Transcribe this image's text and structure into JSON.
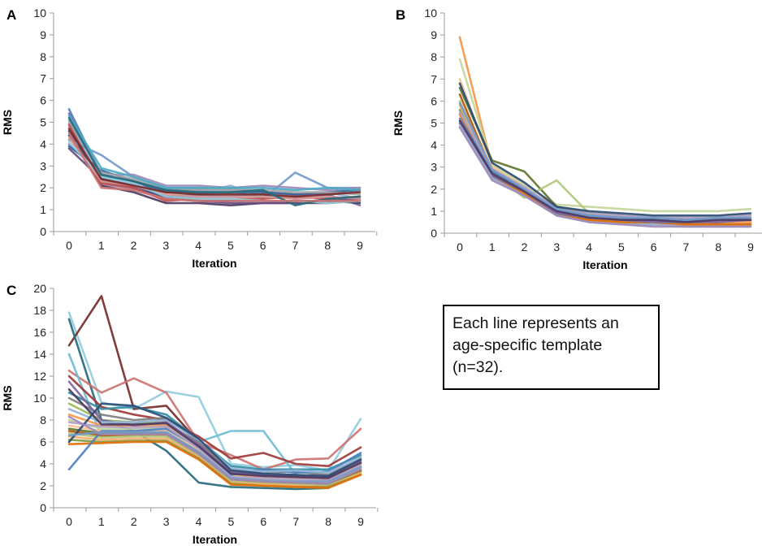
{
  "note": {
    "line1": "Each line represents an",
    "line2": "age-specific template",
    "line3": "(n=32)."
  },
  "palette": [
    "#4F81BD",
    "#C0504D",
    "#9BBB59",
    "#8064A2",
    "#4BACC6",
    "#F79646",
    "#95B3D7",
    "#D99694",
    "#C3D69B",
    "#B3A2C7",
    "#93CDDD",
    "#FAC090",
    "#2C4D75",
    "#772C2A",
    "#5F7530",
    "#4D3B62",
    "#276A7C",
    "#B65708",
    "#729ACA",
    "#CD7371",
    "#AFC97A",
    "#9F8AB8",
    "#6FBDD1",
    "#F9AB6B",
    "#3A679C",
    "#9E3A38",
    "#7E9C40",
    "#664F83",
    "#358DA4",
    "#E46C0A",
    "#A5A5A5",
    "#7F7F7F"
  ],
  "chart_data": [
    {
      "panel": "A",
      "type": "line",
      "xlabel": "Iteration",
      "ylabel": "RMS",
      "x": [
        0,
        1,
        2,
        3,
        4,
        5,
        6,
        7,
        8,
        9
      ],
      "ylim": [
        0,
        10
      ],
      "yticks": [
        0,
        1,
        2,
        3,
        4,
        5,
        6,
        7,
        8,
        9,
        10
      ],
      "series": [
        {
          "values": [
            5.6,
            2.6,
            2.2,
            1.6,
            1.7,
            1.6,
            1.7,
            1.5,
            1.6,
            1.4
          ]
        },
        {
          "values": [
            5.4,
            2.5,
            2.1,
            1.9,
            1.9,
            2.0,
            1.8,
            1.7,
            1.7,
            1.2
          ]
        },
        {
          "values": [
            5.0,
            2.4,
            2.3,
            1.8,
            1.8,
            2.1,
            1.6,
            1.6,
            1.8,
            1.5
          ]
        },
        {
          "values": [
            4.8,
            2.2,
            1.9,
            1.5,
            1.6,
            1.5,
            1.4,
            1.3,
            1.5,
            1.6
          ]
        },
        {
          "values": [
            4.6,
            2.3,
            2.0,
            1.6,
            1.5,
            1.4,
            1.4,
            1.4,
            1.4,
            1.3
          ]
        },
        {
          "values": [
            4.4,
            2.1,
            1.8,
            1.3,
            1.3,
            1.2,
            1.3,
            1.3,
            1.3,
            1.4
          ]
        },
        {
          "values": [
            4.2,
            3.5,
            2.5,
            2.0,
            2.0,
            1.9,
            1.5,
            2.7,
            2.0,
            2.0
          ]
        },
        {
          "values": [
            4.0,
            2.6,
            2.6,
            2.1,
            2.1,
            2.0,
            2.1,
            2.0,
            1.9,
            2.0
          ]
        },
        {
          "values": [
            3.9,
            2.8,
            2.3,
            1.8,
            1.8,
            1.8,
            1.8,
            1.7,
            1.8,
            1.9
          ]
        },
        {
          "values": [
            3.8,
            2.4,
            2.0,
            1.5,
            1.4,
            1.3,
            1.3,
            1.3,
            1.4,
            1.5
          ]
        },
        {
          "values": [
            5.1,
            2.7,
            2.4,
            1.9,
            1.9,
            1.9,
            1.9,
            1.8,
            1.8,
            1.7
          ]
        },
        {
          "values": [
            4.9,
            2.2,
            2.0,
            1.4,
            1.5,
            1.5,
            1.5,
            1.6,
            1.5,
            1.6
          ]
        },
        {
          "values": [
            5.3,
            2.9,
            2.5,
            2.0,
            2.0,
            2.0,
            2.0,
            1.9,
            2.0,
            1.9
          ]
        },
        {
          "values": [
            4.3,
            2.3,
            2.1,
            1.7,
            1.6,
            1.6,
            1.6,
            1.5,
            1.6,
            1.5
          ]
        },
        {
          "values": [
            4.1,
            2.5,
            2.2,
            1.6,
            1.5,
            1.5,
            1.4,
            1.4,
            1.3,
            1.4
          ]
        },
        {
          "values": [
            4.7,
            2.4,
            2.1,
            1.8,
            1.7,
            1.7,
            1.7,
            1.6,
            1.7,
            1.8
          ]
        },
        {
          "values": [
            5.2,
            2.6,
            2.3,
            1.9,
            1.8,
            1.8,
            1.9,
            1.2,
            1.5,
            1.6
          ]
        },
        {
          "values": [
            4.5,
            2.0,
            1.9,
            1.5,
            1.4,
            1.4,
            1.4,
            1.4,
            1.4,
            1.4
          ]
        }
      ]
    },
    {
      "panel": "B",
      "type": "line",
      "xlabel": "Iteration",
      "ylabel": "RMS",
      "x": [
        0,
        1,
        2,
        3,
        4,
        5,
        6,
        7,
        8,
        9
      ],
      "ylim": [
        0,
        10
      ],
      "yticks": [
        0,
        1,
        2,
        3,
        4,
        5,
        6,
        7,
        8,
        9,
        10
      ],
      "series": [
        {
          "values": [
            8.9,
            3.0,
            2.0,
            1.2,
            0.8,
            0.7,
            0.6,
            0.6,
            0.6,
            0.6
          ]
        },
        {
          "values": [
            7.9,
            3.1,
            2.2,
            1.3,
            1.2,
            1.1,
            1.0,
            1.0,
            1.0,
            1.1
          ]
        },
        {
          "values": [
            7.0,
            3.0,
            2.1,
            1.1,
            0.9,
            0.8,
            0.7,
            0.7,
            0.7,
            0.8
          ]
        },
        {
          "values": [
            6.6,
            3.3,
            2.8,
            1.2,
            0.9,
            0.8,
            0.6,
            0.5,
            0.5,
            0.5
          ]
        },
        {
          "values": [
            6.3,
            2.8,
            1.9,
            1.0,
            0.8,
            0.7,
            0.6,
            0.5,
            0.5,
            0.5
          ]
        },
        {
          "values": [
            6.0,
            2.7,
            1.6,
            2.4,
            0.9,
            0.8,
            0.7,
            0.7,
            0.7,
            0.7
          ]
        },
        {
          "values": [
            5.8,
            2.9,
            2.0,
            1.0,
            0.7,
            0.6,
            0.5,
            0.5,
            0.5,
            0.5
          ]
        },
        {
          "values": [
            5.6,
            2.6,
            1.8,
            0.9,
            0.6,
            0.5,
            0.5,
            0.4,
            0.4,
            0.4
          ]
        },
        {
          "values": [
            5.4,
            2.5,
            1.8,
            0.8,
            0.6,
            0.5,
            0.4,
            0.4,
            0.4,
            0.4
          ]
        },
        {
          "values": [
            5.2,
            2.8,
            2.0,
            1.0,
            0.8,
            0.7,
            0.6,
            0.6,
            0.6,
            0.7
          ]
        },
        {
          "values": [
            5.0,
            2.6,
            1.9,
            0.9,
            0.7,
            0.6,
            0.5,
            0.5,
            0.5,
            0.6
          ]
        },
        {
          "values": [
            4.9,
            2.5,
            1.7,
            0.8,
            0.5,
            0.4,
            0.4,
            0.3,
            0.3,
            0.3
          ]
        },
        {
          "values": [
            5.5,
            2.9,
            2.1,
            1.1,
            0.9,
            0.8,
            0.7,
            0.7,
            0.7,
            0.8
          ]
        },
        {
          "values": [
            6.8,
            3.2,
            2.3,
            1.2,
            1.0,
            0.9,
            0.8,
            0.8,
            0.8,
            0.9
          ]
        },
        {
          "values": [
            5.1,
            2.7,
            1.9,
            1.0,
            0.7,
            0.6,
            0.6,
            0.5,
            0.6,
            0.6
          ]
        },
        {
          "values": [
            5.9,
            2.9,
            2.0,
            1.1,
            0.8,
            0.7,
            0.7,
            0.6,
            0.7,
            0.7
          ]
        },
        {
          "values": [
            4.8,
            2.4,
            1.7,
            0.8,
            0.5,
            0.4,
            0.3,
            0.3,
            0.3,
            0.3
          ]
        }
      ]
    },
    {
      "panel": "C",
      "type": "line",
      "xlabel": "Iteration",
      "ylabel": "RMS",
      "x": [
        0,
        1,
        2,
        3,
        4,
        5,
        6,
        7,
        8,
        9
      ],
      "ylim": [
        0,
        20
      ],
      "yticks": [
        0,
        2,
        4,
        6,
        8,
        10,
        12,
        14,
        16,
        18,
        20
      ],
      "series": [
        {
          "values": [
            17.8,
            9.6,
            9.0,
            10.6,
            10.1,
            4.0,
            3.7,
            3.9,
            3.4,
            8.1
          ]
        },
        {
          "values": [
            14.8,
            19.3,
            9.0,
            9.3,
            6.0,
            3.3,
            3.0,
            2.8,
            2.6,
            3.5
          ]
        },
        {
          "values": [
            17.2,
            8.0,
            7.0,
            5.2,
            2.3,
            1.9,
            1.8,
            1.7,
            1.8,
            3.7
          ]
        },
        {
          "values": [
            12.5,
            10.5,
            11.8,
            10.5,
            6.0,
            4.8,
            3.5,
            4.4,
            4.5,
            7.2
          ]
        },
        {
          "values": [
            14.0,
            6.5,
            6.8,
            7.5,
            6.0,
            7.0,
            7.0,
            3.0,
            2.8,
            4.0
          ]
        },
        {
          "values": [
            12.0,
            9.2,
            8.5,
            8.0,
            6.5,
            4.5,
            5.0,
            4.0,
            3.8,
            5.5
          ]
        },
        {
          "values": [
            10.5,
            9.0,
            9.2,
            8.5,
            6.2,
            3.8,
            3.5,
            3.5,
            3.5,
            4.8
          ]
        },
        {
          "values": [
            10.0,
            8.5,
            8.0,
            8.2,
            6.0,
            3.5,
            3.2,
            3.3,
            3.0,
            4.5
          ]
        },
        {
          "values": [
            9.5,
            8.0,
            7.8,
            7.8,
            5.8,
            3.3,
            3.0,
            3.0,
            2.8,
            4.2
          ]
        },
        {
          "values": [
            8.5,
            7.5,
            7.5,
            7.5,
            5.5,
            3.0,
            2.8,
            2.7,
            2.6,
            4.0
          ]
        },
        {
          "values": [
            8.0,
            7.2,
            7.2,
            7.3,
            5.3,
            2.9,
            2.6,
            2.5,
            2.4,
            3.8
          ]
        },
        {
          "values": [
            7.5,
            7.0,
            7.0,
            7.0,
            5.2,
            2.7,
            2.5,
            2.4,
            2.3,
            3.6
          ]
        },
        {
          "values": [
            7.2,
            6.8,
            6.8,
            6.8,
            5.0,
            2.6,
            2.4,
            2.3,
            2.2,
            3.4
          ]
        },
        {
          "values": [
            7.0,
            6.6,
            6.6,
            6.6,
            4.8,
            2.5,
            2.3,
            2.2,
            2.1,
            3.3
          ]
        },
        {
          "values": [
            6.8,
            6.4,
            6.5,
            6.5,
            4.7,
            2.4,
            2.2,
            2.1,
            2.0,
            3.2
          ]
        },
        {
          "values": [
            6.5,
            6.2,
            6.3,
            6.3,
            4.6,
            2.3,
            2.1,
            2.0,
            1.9,
            3.1
          ]
        },
        {
          "values": [
            6.2,
            6.0,
            6.1,
            6.1,
            4.5,
            2.2,
            2.0,
            1.9,
            1.9,
            3.0
          ]
        },
        {
          "values": [
            5.8,
            5.9,
            6.0,
            6.0,
            4.4,
            2.1,
            2.0,
            1.9,
            1.8,
            3.0
          ]
        },
        {
          "values": [
            3.5,
            7.0,
            7.0,
            7.2,
            5.5,
            3.0,
            3.5,
            3.2,
            3.3,
            5.0
          ]
        },
        {
          "values": [
            11.5,
            8.0,
            7.5,
            7.8,
            5.8,
            3.2,
            3.0,
            2.9,
            2.8,
            4.3
          ]
        },
        {
          "values": [
            9.0,
            7.8,
            7.8,
            8.0,
            6.2,
            3.6,
            3.3,
            3.4,
            3.2,
            4.6
          ]
        },
        {
          "values": [
            7.8,
            7.4,
            7.3,
            7.4,
            5.4,
            2.8,
            2.7,
            2.6,
            2.5,
            3.9
          ]
        },
        {
          "values": [
            6.0,
            9.5,
            9.3,
            8.2,
            6.3,
            3.4,
            3.1,
            3.0,
            2.9,
            4.4
          ]
        },
        {
          "values": [
            10.8,
            7.6,
            7.6,
            7.7,
            5.6,
            3.1,
            2.9,
            2.8,
            2.7,
            4.1
          ]
        },
        {
          "values": [
            6.6,
            6.9,
            6.9,
            6.9,
            5.1,
            2.7,
            2.5,
            2.4,
            2.4,
            3.7
          ]
        },
        {
          "values": [
            8.3,
            6.7,
            6.7,
            6.7,
            4.9,
            2.6,
            2.4,
            2.3,
            2.2,
            3.5
          ]
        }
      ]
    }
  ]
}
